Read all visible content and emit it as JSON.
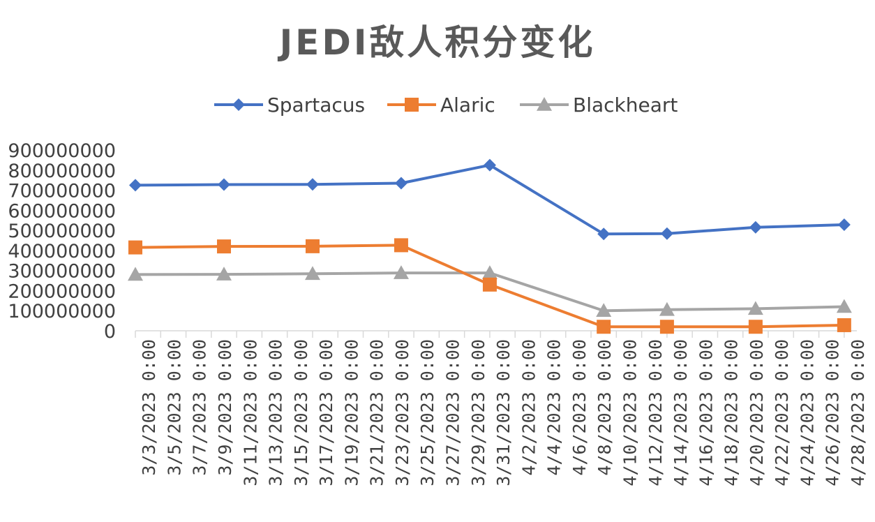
{
  "chart_data": {
    "type": "line",
    "title": "JEDI敌人积分变化",
    "xlabel": "",
    "ylabel": "",
    "ylim": [
      0,
      900000000
    ],
    "yticks": [
      "0",
      "100000000",
      "200000000",
      "300000000",
      "400000000",
      "500000000",
      "600000000",
      "700000000",
      "800000000",
      "900000000"
    ],
    "x_axis_labels": [
      "3/3/2023 0:00",
      "3/5/2023 0:00",
      "3/7/2023 0:00",
      "3/9/2023 0:00",
      "3/11/2023 0:00",
      "3/13/2023 0:00",
      "3/15/2023 0:00",
      "3/17/2023 0:00",
      "3/19/2023 0:00",
      "3/21/2023 0:00",
      "3/23/2023 0:00",
      "3/25/2023 0:00",
      "3/27/2023 0:00",
      "3/29/2023 0:00",
      "3/31/2023 0:00",
      "4/2/2023 0:00",
      "4/4/2023 0:00",
      "4/6/2023 0:00",
      "4/8/2023 0:00",
      "4/10/2023 0:00",
      "4/12/2023 0:00",
      "4/14/2023 0:00",
      "4/16/2023 0:00",
      "4/18/2023 0:00",
      "4/20/2023 0:00",
      "4/22/2023 0:00",
      "4/24/2023 0:00",
      "4/26/2023 0:00",
      "4/28/2023 0:00"
    ],
    "x_range": [
      "2023-03-03",
      "2023-04-29"
    ],
    "x": [
      "2023-03-03",
      "2023-03-10",
      "2023-03-17",
      "2023-03-24",
      "2023-03-31",
      "2023-04-09",
      "2023-04-14",
      "2023-04-21",
      "2023-04-28"
    ],
    "series": [
      {
        "name": "Spartacus",
        "color": "#4472C4",
        "marker": "diamond",
        "values": [
          725000000,
          728000000,
          729000000,
          735000000,
          825000000,
          482000000,
          484000000,
          515000000,
          528000000
        ]
      },
      {
        "name": "Alaric",
        "color": "#ED7D31",
        "marker": "square",
        "values": [
          415000000,
          420000000,
          421000000,
          426000000,
          230000000,
          20000000,
          20000000,
          20000000,
          28000000
        ]
      },
      {
        "name": "Blackheart",
        "color": "#A5A5A5",
        "marker": "triangle",
        "values": [
          280000000,
          281000000,
          284000000,
          288000000,
          288000000,
          100000000,
          105000000,
          110000000,
          120000000
        ]
      }
    ],
    "legend_position": "top",
    "grid": false
  }
}
